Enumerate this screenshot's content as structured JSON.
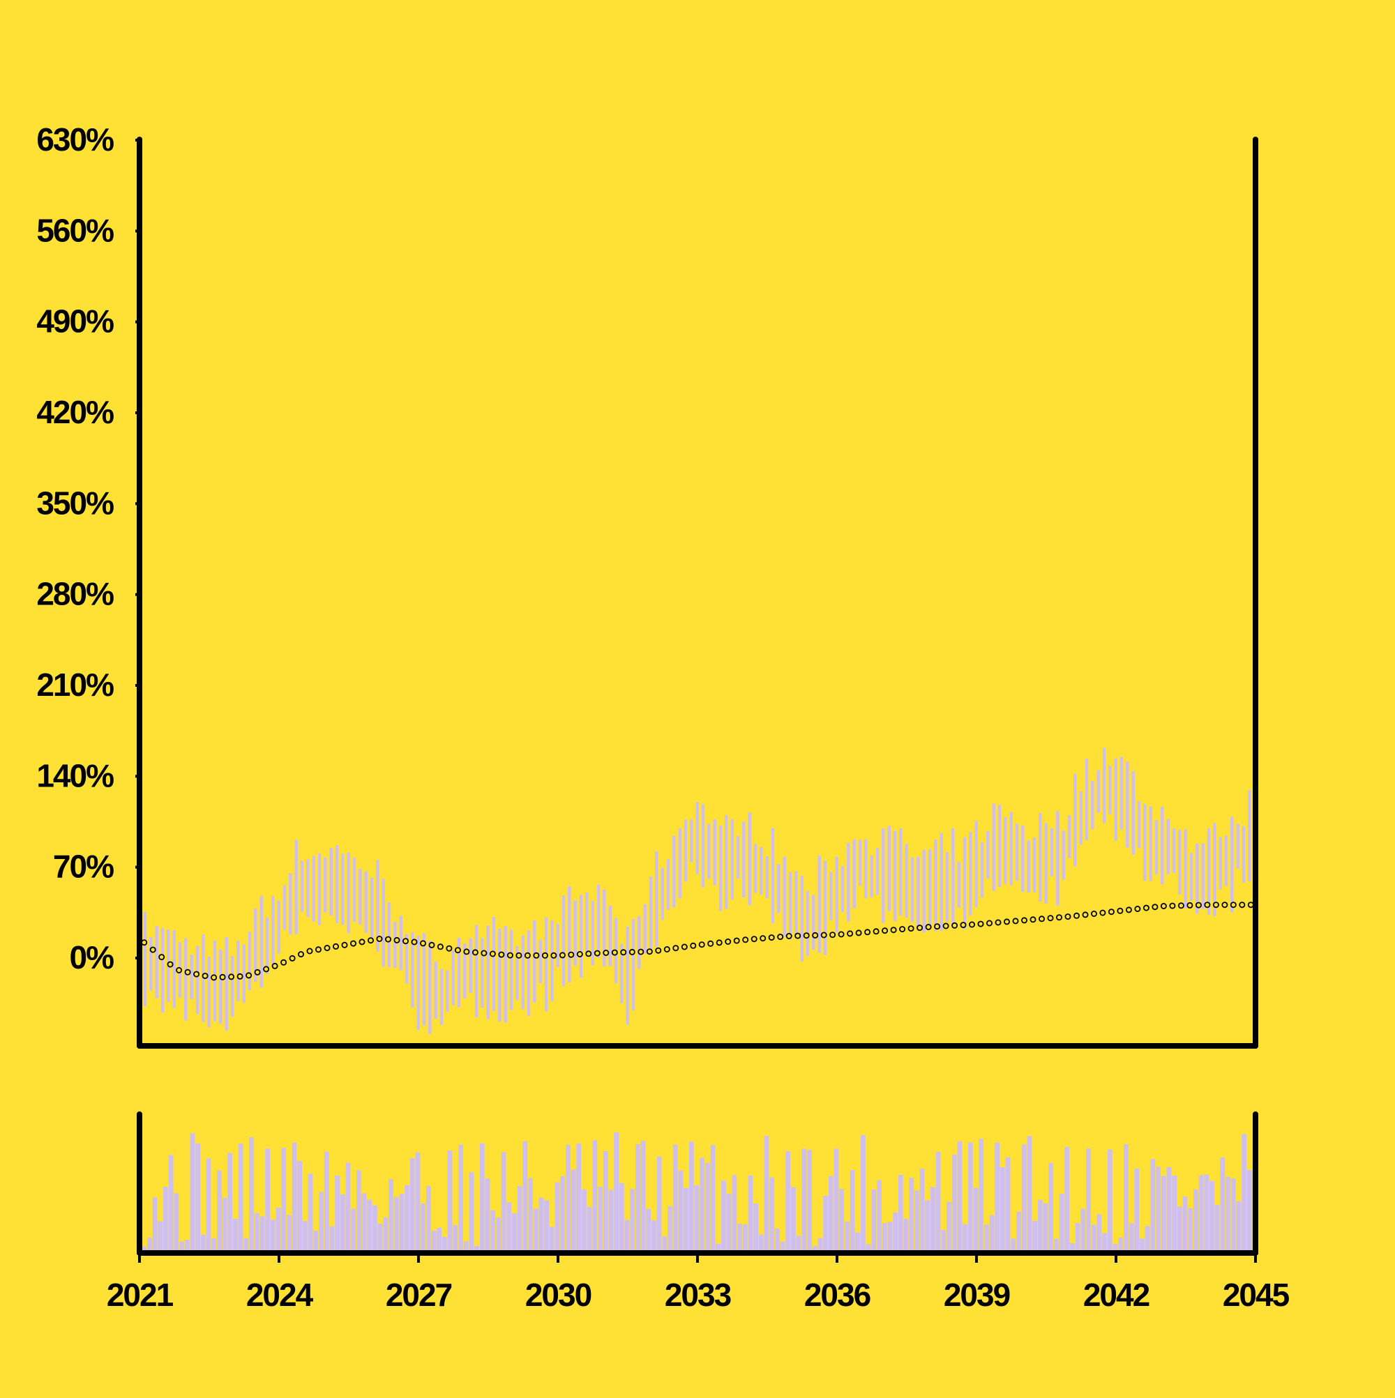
{
  "chart_data": {
    "type": "candlestick",
    "title": "",
    "xlabel": "",
    "ylabel": "",
    "x_range": [
      2021,
      2045
    ],
    "y_range": [
      -65,
      630
    ],
    "x_ticks": [
      "2021",
      "2024",
      "2027",
      "2030",
      "2033",
      "2036",
      "2039",
      "2042",
      "2045"
    ],
    "y_ticks": [
      "0%",
      "70%",
      "140%",
      "210%",
      "280%",
      "350%",
      "420%",
      "490%",
      "560%",
      "630%"
    ],
    "grid": false,
    "legend": "none",
    "panels": [
      "price",
      "volume"
    ],
    "colors": {
      "background": "#ffe135",
      "candle": "#cfbfee",
      "volume": "#cfbfee",
      "axis": "#000000",
      "moving_average_marker": "#ffe135"
    },
    "anchors": [
      {
        "t": 2021.0,
        "c": 12
      },
      {
        "t": 2021.3,
        "c": -5
      },
      {
        "t": 2021.7,
        "c": -10
      },
      {
        "t": 2022.3,
        "c": -20
      },
      {
        "t": 2022.9,
        "c": -25
      },
      {
        "t": 2023.5,
        "c": 5
      },
      {
        "t": 2024.0,
        "c": 25
      },
      {
        "t": 2024.4,
        "c": 55
      },
      {
        "t": 2025.0,
        "c": 55
      },
      {
        "t": 2025.5,
        "c": 50
      },
      {
        "t": 2026.2,
        "c": 35
      },
      {
        "t": 2026.7,
        "c": 0
      },
      {
        "t": 2027.3,
        "c": -30
      },
      {
        "t": 2027.8,
        "c": -15
      },
      {
        "t": 2028.5,
        "c": -5
      },
      {
        "t": 2029.0,
        "c": -10
      },
      {
        "t": 2029.5,
        "c": -5
      },
      {
        "t": 2030.0,
        "c": 5
      },
      {
        "t": 2030.5,
        "c": 20
      },
      {
        "t": 2031.0,
        "c": 25
      },
      {
        "t": 2031.5,
        "c": -20
      },
      {
        "t": 2032.0,
        "c": 35
      },
      {
        "t": 2032.5,
        "c": 65
      },
      {
        "t": 2033.0,
        "c": 95
      },
      {
        "t": 2033.6,
        "c": 70
      },
      {
        "t": 2034.3,
        "c": 75
      },
      {
        "t": 2034.8,
        "c": 55
      },
      {
        "t": 2035.3,
        "c": 25
      },
      {
        "t": 2035.8,
        "c": 45
      },
      {
        "t": 2036.2,
        "c": 60
      },
      {
        "t": 2036.6,
        "c": 70
      },
      {
        "t": 2037.2,
        "c": 65
      },
      {
        "t": 2037.8,
        "c": 50
      },
      {
        "t": 2038.3,
        "c": 55
      },
      {
        "t": 2038.8,
        "c": 60
      },
      {
        "t": 2039.5,
        "c": 85
      },
      {
        "t": 2040.2,
        "c": 70
      },
      {
        "t": 2040.8,
        "c": 80
      },
      {
        "t": 2041.2,
        "c": 110
      },
      {
        "t": 2041.7,
        "c": 130
      },
      {
        "t": 2042.2,
        "c": 120
      },
      {
        "t": 2042.6,
        "c": 95
      },
      {
        "t": 2043.2,
        "c": 80
      },
      {
        "t": 2043.7,
        "c": 55
      },
      {
        "t": 2044.3,
        "c": 70
      },
      {
        "t": 2044.9,
        "c": 90
      }
    ],
    "moving_average": [
      {
        "t": 2021.1,
        "v": 12
      },
      {
        "t": 2021.8,
        "v": -9
      },
      {
        "t": 2022.3,
        "v": -13
      },
      {
        "t": 2022.6,
        "v": -15
      },
      {
        "t": 2023.3,
        "v": -14
      },
      {
        "t": 2024.0,
        "v": -5
      },
      {
        "t": 2024.6,
        "v": 5
      },
      {
        "t": 2025.4,
        "v": 10
      },
      {
        "t": 2026.2,
        "v": 15
      },
      {
        "t": 2027.0,
        "v": 12
      },
      {
        "t": 2028.0,
        "v": 5
      },
      {
        "t": 2029.0,
        "v": 2
      },
      {
        "t": 2030.0,
        "v": 2
      },
      {
        "t": 2031.0,
        "v": 4
      },
      {
        "t": 2032.0,
        "v": 5
      },
      {
        "t": 2033.0,
        "v": 10
      },
      {
        "t": 2034.0,
        "v": 14
      },
      {
        "t": 2035.0,
        "v": 17
      },
      {
        "t": 2036.0,
        "v": 18
      },
      {
        "t": 2037.0,
        "v": 21
      },
      {
        "t": 2038.0,
        "v": 24
      },
      {
        "t": 2039.0,
        "v": 26
      },
      {
        "t": 2040.0,
        "v": 29
      },
      {
        "t": 2041.0,
        "v": 32
      },
      {
        "t": 2042.0,
        "v": 36
      },
      {
        "t": 2043.0,
        "v": 40
      },
      {
        "t": 2044.0,
        "v": 41
      },
      {
        "t": 2044.9,
        "v": 41
      }
    ]
  }
}
